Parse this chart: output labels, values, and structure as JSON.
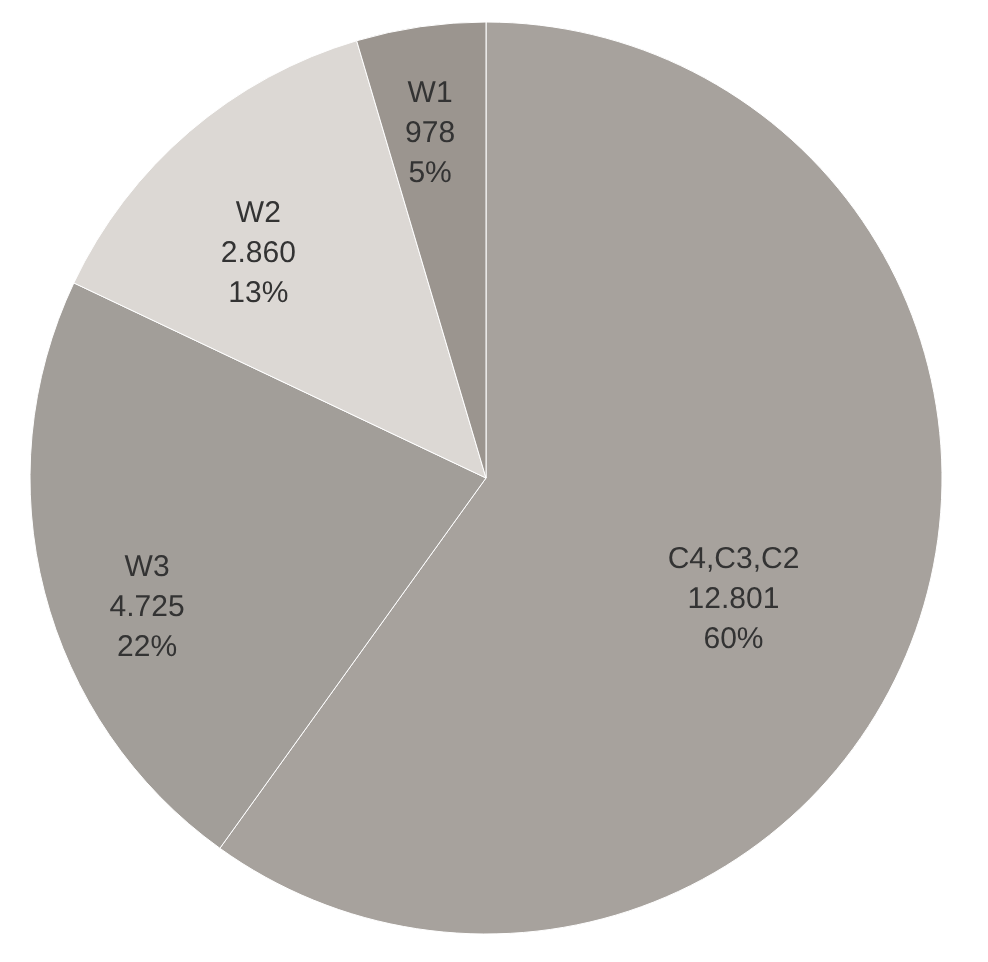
{
  "chart_data": {
    "type": "pie",
    "categories": [
      "C4,C3,C2",
      "W3",
      "W2",
      "W1"
    ],
    "values": [
      12801,
      4725,
      2860,
      978
    ],
    "value_labels": [
      "12.801\n60%",
      "4.725\n22%",
      "2.860\n13%",
      "978\n5%"
    ],
    "colors": [
      "#a7a29d",
      "#a29e99",
      "#dcd8d4",
      "#9b958f"
    ],
    "legend": false
  }
}
